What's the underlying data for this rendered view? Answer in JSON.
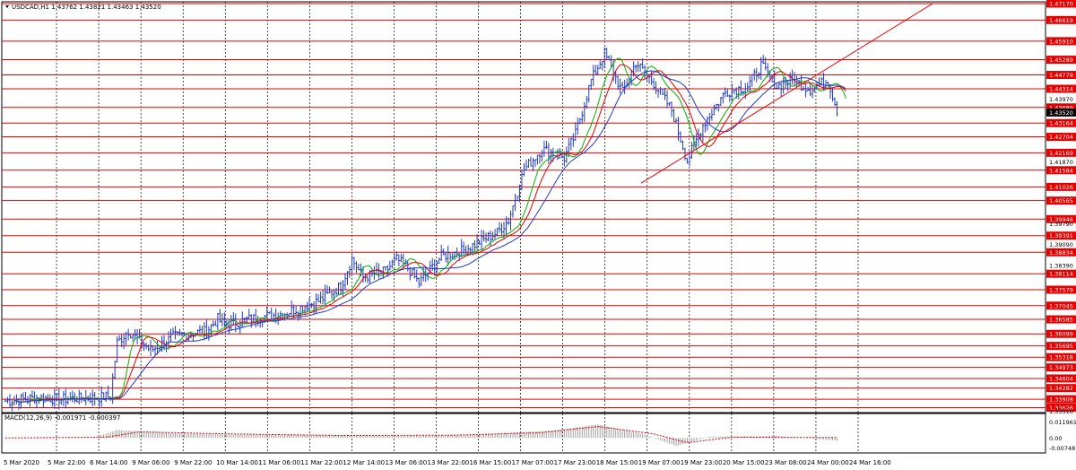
{
  "header": {
    "symbol_line": "USDCAD,H1  1.43762 1.43821 1.43463 1.43520",
    "macd_line": "MACD(12,26,9) -0.001971 -0.000397"
  },
  "colors": {
    "candles": "#1f3cc8",
    "levels": "#e60000",
    "grid": "#000000",
    "ma_fast": "#00b400",
    "ma_mid": "#e60000",
    "ma_slow": "#1f3cc8",
    "trendline": "#e60000",
    "macd_hist": "#a0a0a0",
    "macd_signal": "#e60000"
  },
  "chart_data": {
    "type": "candlestick",
    "title": "",
    "xlabel": "",
    "ylabel": "",
    "ylim": [
      1.3352,
      1.4717
    ],
    "x_ticks": [
      "5 Mar 2020",
      "5 Mar 22:00",
      "6 Mar 14:00",
      "9 Mar 06:00",
      "9 Mar 22:00",
      "10 Mar 14:00",
      "11 Mar 06:00",
      "11 Mar 22:00",
      "12 Mar 14:00",
      "13 Mar 06:00",
      "13 Mar 22:00",
      "16 Mar 15:00",
      "17 Mar 07:00",
      "17 Mar 23:00",
      "18 Mar 15:00",
      "19 Mar 07:00",
      "19 Mar 23:00",
      "20 Mar 15:00",
      "23 Mar 08:00",
      "24 Mar 00:00",
      "24 Mar 16:00"
    ],
    "y_ticks": [
      "1.47170",
      "1.46619",
      "1.45910",
      "1.45289",
      "1.44779",
      "1.44314",
      "1.43970",
      "1.43689",
      "1.43520",
      "1.43164",
      "1.42704",
      "1.42169",
      "1.41870",
      "1.41584",
      "1.41026",
      "1.40565",
      "1.39946",
      "1.39790",
      "1.39391",
      "1.39090",
      "1.38834",
      "1.38390",
      "1.38114",
      "1.37579",
      "1.37045",
      "1.36585",
      "1.36099",
      "1.35695",
      "1.35318",
      "1.34973",
      "1.34604",
      "1.34282",
      "1.33908",
      "1.33626",
      "1.33510"
    ],
    "plain_ticks": [
      "1.43970",
      "1.41870",
      "1.39790",
      "1.39090",
      "1.38390",
      "1.33510"
    ],
    "current_price": "1.43520",
    "levels": [
      1.4717,
      1.46619,
      1.4591,
      1.45289,
      1.44779,
      1.44314,
      1.43689,
      1.43164,
      1.42704,
      1.42169,
      1.41584,
      1.41026,
      1.40565,
      1.39946,
      1.39391,
      1.38834,
      1.38114,
      1.37579,
      1.37045,
      1.36585,
      1.36099,
      1.35695,
      1.35318,
      1.34973,
      1.34604,
      1.34282,
      1.33908,
      1.33626
    ],
    "trendline": [
      {
        "x": "19 Mar 21:00",
        "y": 1.4115
      },
      {
        "x": "25 Mar 07:00",
        "y": 1.4717
      }
    ],
    "close_anchors": [
      [
        0,
        1.3385
      ],
      [
        14,
        1.3395
      ],
      [
        25,
        1.3392
      ],
      [
        40,
        1.3396
      ],
      [
        47,
        1.34
      ],
      [
        50,
        1.358
      ],
      [
        55,
        1.362
      ],
      [
        65,
        1.3555
      ],
      [
        75,
        1.36
      ],
      [
        90,
        1.362
      ],
      [
        95,
        1.366
      ],
      [
        98,
        1.364
      ],
      [
        110,
        1.366
      ],
      [
        125,
        1.368
      ],
      [
        140,
        1.372
      ],
      [
        150,
        1.377
      ],
      [
        155,
        1.386
      ],
      [
        160,
        1.38
      ],
      [
        170,
        1.382
      ],
      [
        175,
        1.386
      ],
      [
        180,
        1.383
      ],
      [
        185,
        1.378
      ],
      [
        195,
        1.387
      ],
      [
        205,
        1.389
      ],
      [
        215,
        1.393
      ],
      [
        220,
        1.395
      ],
      [
        225,
        1.399
      ],
      [
        232,
        1.416
      ],
      [
        240,
        1.423
      ],
      [
        250,
        1.42
      ],
      [
        255,
        1.428
      ],
      [
        262,
        1.446
      ],
      [
        268,
        1.455
      ],
      [
        276,
        1.442
      ],
      [
        282,
        1.452
      ],
      [
        290,
        1.445
      ],
      [
        298,
        1.436
      ],
      [
        305,
        1.419
      ],
      [
        312,
        1.431
      ],
      [
        322,
        1.442
      ],
      [
        332,
        1.444
      ],
      [
        338,
        1.451
      ],
      [
        345,
        1.444
      ],
      [
        352,
        1.446
      ],
      [
        360,
        1.443
      ],
      [
        368,
        1.446
      ],
      [
        372,
        1.436
      ]
    ],
    "x_range_bars": 373,
    "macd": {
      "ylim": [
        -0.0085,
        0.0155
      ],
      "y_ticks": [
        "0.011961",
        "0.00",
        "-0.00748"
      ],
      "hist_anchors": [
        [
          0,
          0
        ],
        [
          40,
          0.0005
        ],
        [
          50,
          0.006
        ],
        [
          75,
          0.0035
        ],
        [
          100,
          0.0025
        ],
        [
          140,
          0.002
        ],
        [
          175,
          0.0015
        ],
        [
          205,
          0.002
        ],
        [
          245,
          0.0055
        ],
        [
          265,
          0.01
        ],
        [
          285,
          0.003
        ],
        [
          300,
          -0.006
        ],
        [
          315,
          0.001
        ],
        [
          345,
          0.0015
        ],
        [
          372,
          -0.002
        ]
      ],
      "signal_anchors": [
        [
          0,
          0
        ],
        [
          45,
          0.0005
        ],
        [
          60,
          0.0045
        ],
        [
          100,
          0.003
        ],
        [
          150,
          0.0018
        ],
        [
          200,
          0.002
        ],
        [
          240,
          0.004
        ],
        [
          265,
          0.0085
        ],
        [
          290,
          0.003
        ],
        [
          305,
          -0.0035
        ],
        [
          325,
          0.0005
        ],
        [
          372,
          0.0003
        ]
      ]
    }
  }
}
